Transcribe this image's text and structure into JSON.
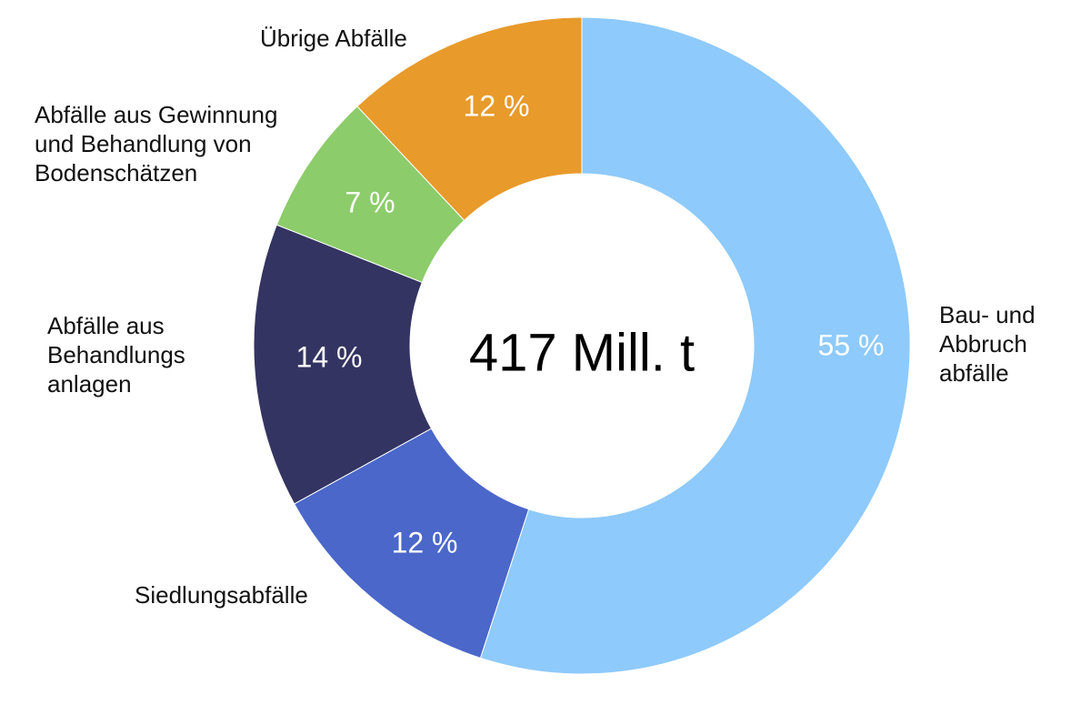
{
  "chart_data": {
    "type": "pie",
    "variant": "donut",
    "center_label": "417 Mill. t",
    "categories": [
      "Bau- und Abbruch abfälle",
      "Siedlungsabfälle",
      "Abfälle aus Behandlungs anlagen",
      "Abfälle aus Gewinnung und Behandlung von Bodenschätzen",
      "Übrige Abfälle"
    ],
    "labels": [
      "Bau- und\nAbbruch\nabfälle",
      "Siedlungsabfälle",
      "Abfälle aus\nBehandlungs\nanlagen",
      "Abfälle aus Gewinnung\nund Behandlung von\nBodenschätzen",
      "Übrige Abfälle"
    ],
    "values": [
      55,
      12,
      14,
      7,
      12
    ],
    "value_labels": [
      "55 %",
      "12 %",
      "14 %",
      "7 %",
      "12 %"
    ],
    "colors": [
      "#8ecafb",
      "#4a67c9",
      "#343462",
      "#8ccc6b",
      "#e89a2b"
    ],
    "start": "top",
    "direction": "clockwise"
  }
}
